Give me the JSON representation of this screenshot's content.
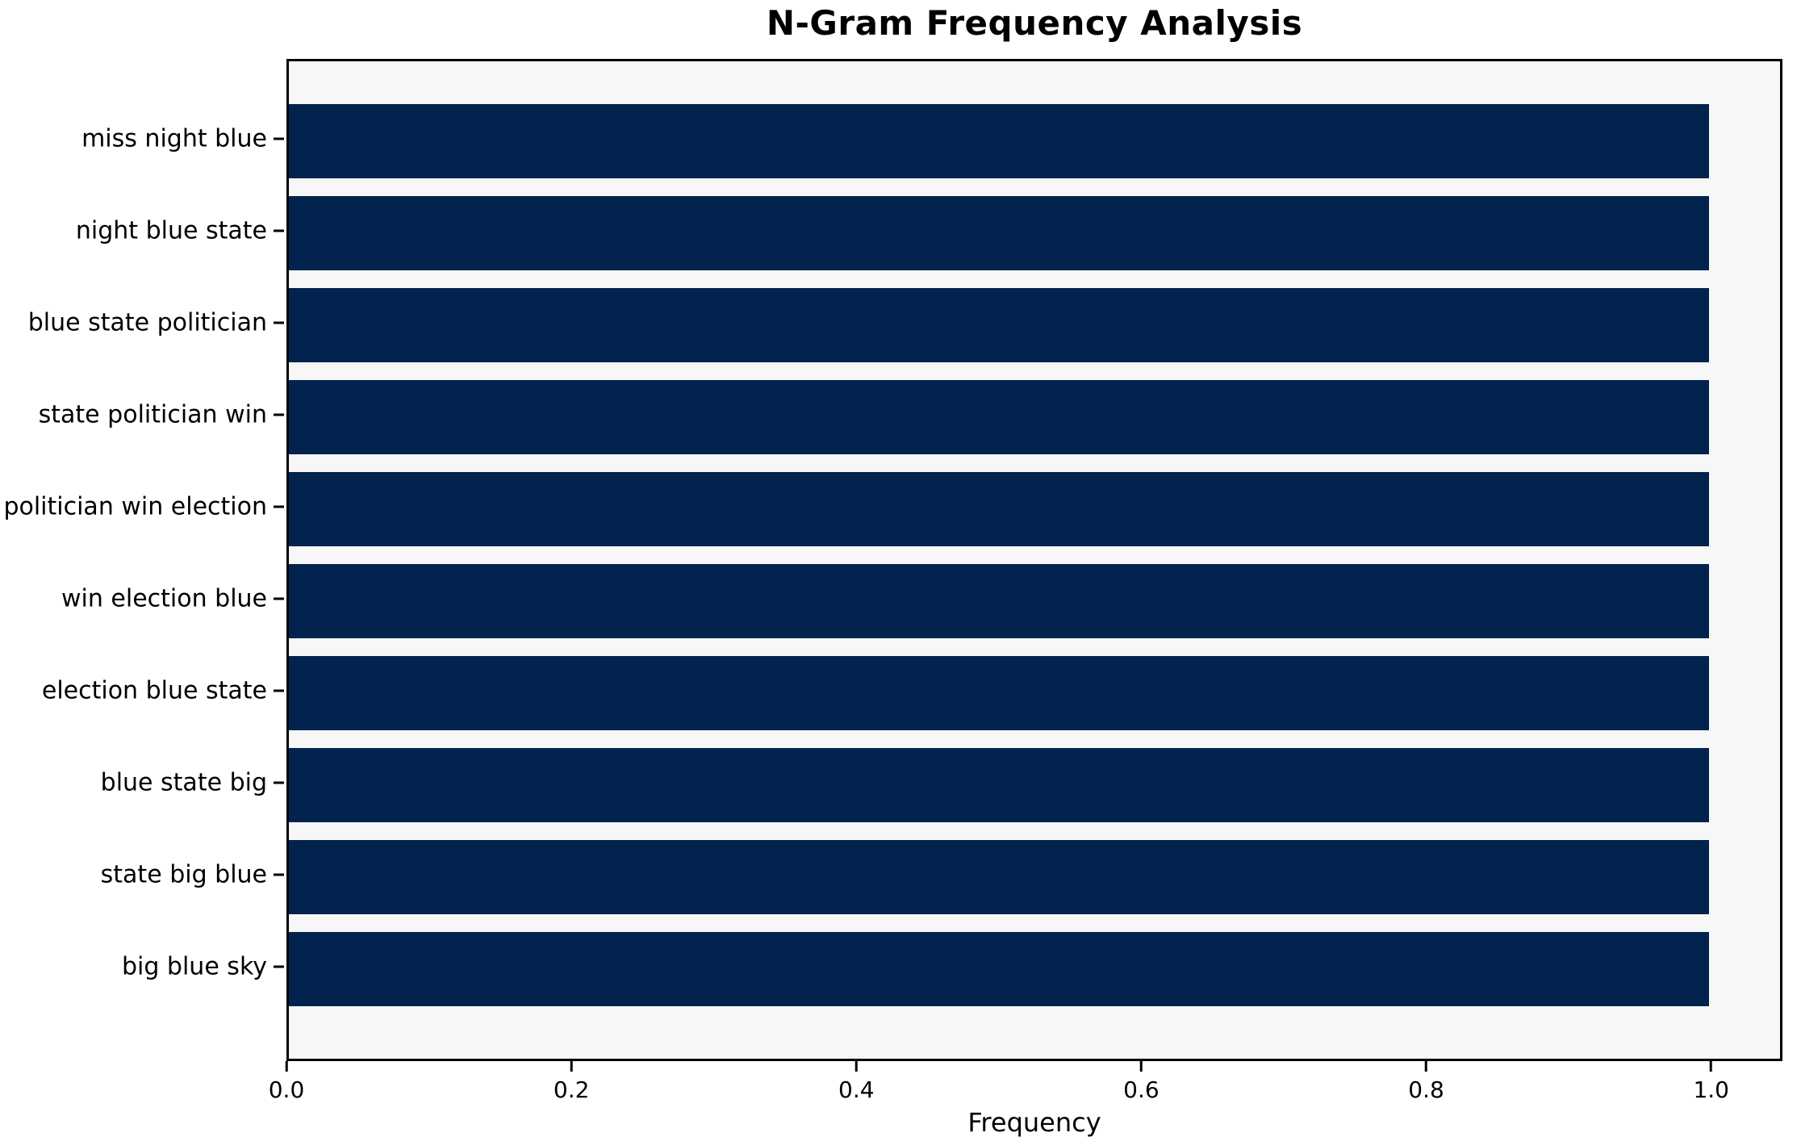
{
  "chart_data": {
    "type": "bar",
    "orientation": "horizontal",
    "title": "N-Gram Frequency Analysis",
    "xlabel": "Frequency",
    "ylabel": "",
    "categories": [
      "miss night blue",
      "night blue state",
      "blue state politician",
      "state politician win",
      "politician win election",
      "win election blue",
      "election blue state",
      "blue state big",
      "state big blue",
      "big blue sky"
    ],
    "values": [
      1.0,
      1.0,
      1.0,
      1.0,
      1.0,
      1.0,
      1.0,
      1.0,
      1.0,
      1.0
    ],
    "xticks": [
      0.0,
      0.2,
      0.4,
      0.6,
      0.8,
      1.0
    ],
    "xtick_labels": [
      "0.0",
      "0.2",
      "0.4",
      "0.6",
      "0.8",
      "1.0"
    ],
    "xlim": [
      0,
      1.05
    ],
    "grid": false,
    "legend": false,
    "bar_color": "#02234d",
    "plot_bg": "#f7f7f8",
    "figure_bg": "#ffffff",
    "spine_color": "#000000"
  }
}
